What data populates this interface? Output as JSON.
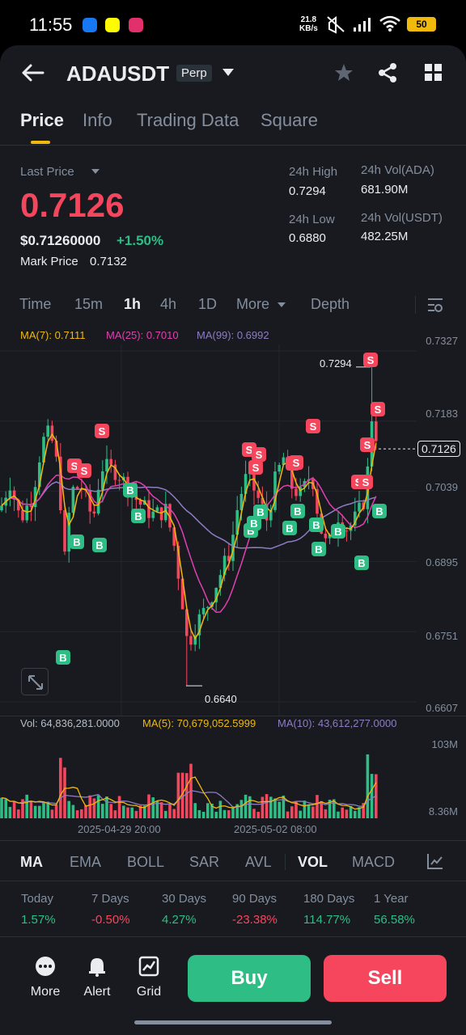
{
  "status": {
    "time": "11:55",
    "net_speed_top": "21.8",
    "net_speed_bottom": "KB/s",
    "battery": "50"
  },
  "header": {
    "symbol": "ADAUSDT",
    "contract_type": "Perp"
  },
  "tabs": [
    "Price",
    "Info",
    "Trading Data",
    "Square"
  ],
  "price": {
    "last_price_label": "Last Price",
    "last_price": "0.7126",
    "usd_price": "$0.71260000",
    "change": "+1.50%",
    "mark_label": "Mark Price",
    "mark_value": "0.7132"
  },
  "stats": {
    "high_label": "24h High",
    "high": "0.7294",
    "low_label": "24h Low",
    "low": "0.6880",
    "vol_ada_label": "24h Vol(ADA)",
    "vol_ada": "681.90M",
    "vol_usdt_label": "24h Vol(USDT)",
    "vol_usdt": "482.25M"
  },
  "timeframes": [
    "Time",
    "15m",
    "1h",
    "4h",
    "1D",
    "More",
    "Depth"
  ],
  "ma_legend": {
    "ma7": "MA(7): 0.7111",
    "ma25": "MA(25): 0.7010",
    "ma99": "MA(99): 0.6992"
  },
  "price_axis": [
    "0.7327",
    "0.7183",
    "0.7039",
    "0.6895",
    "0.6751",
    "0.6607"
  ],
  "current_price_tag": "0.7126",
  "chart_data": {
    "type": "candlestick",
    "interval": "1h",
    "y_range": [
      0.6607,
      0.7327
    ],
    "high_marker": 0.7294,
    "low_marker": 0.664,
    "high_marker_label": "0.7294",
    "low_marker_label": "0.6640",
    "last": 0.7126,
    "ma": {
      "MA(7)": 0.7111,
      "MA(25)": 0.701,
      "MA(99)": 0.6992
    },
    "x_labels": [
      "2025-04-29 20:00",
      "2025-05-02 08:00"
    ],
    "volume_axis": [
      "103M",
      "8.36M"
    ]
  },
  "volume": {
    "vol": "Vol: 64,836,281.0000",
    "ma5": "MA(5): 70,679,052.5999",
    "ma10": "MA(10): 43,612,277.0000",
    "axis_top": "103M",
    "axis_bottom": "8.36M"
  },
  "x_axis": [
    "2025-04-29 20:00",
    "2025-05-02 08:00"
  ],
  "indicators": [
    "MA",
    "EMA",
    "BOLL",
    "SAR",
    "AVL",
    "VOL",
    "MACD"
  ],
  "performance": [
    {
      "label": "Today",
      "value": "1.57%",
      "trend": "up"
    },
    {
      "label": "7 Days",
      "value": "-0.50%",
      "trend": "down"
    },
    {
      "label": "30 Days",
      "value": "4.27%",
      "trend": "up"
    },
    {
      "label": "90 Days",
      "value": "-23.38%",
      "trend": "down"
    },
    {
      "label": "180 Days",
      "value": "114.77%",
      "trend": "up"
    },
    {
      "label": "1 Year",
      "value": "56.58%",
      "trend": "up"
    }
  ],
  "bottom": {
    "more": "More",
    "alert": "Alert",
    "grid": "Grid",
    "buy": "Buy",
    "sell": "Sell"
  },
  "colors": {
    "up": "#2ebd85",
    "down": "#f6465d",
    "ma7": "#f0b90b",
    "ma25": "#e040b0",
    "ma99": "#8e7cc3",
    "accent": "#f0b90b"
  }
}
